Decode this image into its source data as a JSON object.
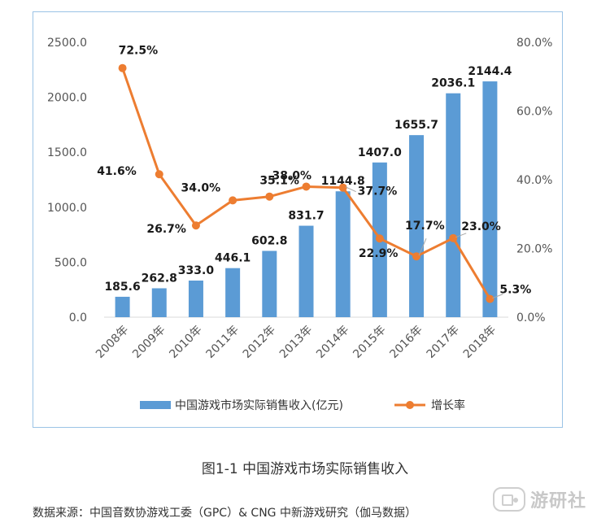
{
  "chart_data": {
    "type": "bar",
    "categories": [
      "2008年",
      "2009年",
      "2010年",
      "2011年",
      "2012年",
      "2013年",
      "2014年",
      "2015年",
      "2016年",
      "2017年",
      "2018年"
    ],
    "series": [
      {
        "name": "中国游戏市场实际销售收入(亿元)",
        "type": "bar",
        "axis": "left",
        "color": "#5b9bd5",
        "values": [
          185.6,
          262.8,
          333.0,
          446.1,
          602.8,
          831.7,
          1144.8,
          1407.0,
          1655.7,
          2036.1,
          2144.4
        ],
        "labels": [
          "185.6",
          "262.8",
          "333.0",
          "446.1",
          "602.8",
          "831.7",
          "1144.8",
          "1407.0",
          "1655.7",
          "2036.1",
          "2144.4"
        ]
      },
      {
        "name": "增长率",
        "type": "line",
        "axis": "right",
        "color": "#ed7d31",
        "values": [
          72.5,
          41.6,
          26.7,
          34.0,
          35.1,
          38.0,
          37.7,
          22.9,
          17.7,
          23.0,
          5.3
        ],
        "labels": [
          "72.5%",
          "41.6%",
          "26.7%",
          "34.0%",
          "35.1%",
          "38.0%",
          "37.7%",
          "22.9%",
          "17.7%",
          "23.0%",
          "5.3%"
        ]
      }
    ],
    "y_left": {
      "ylim": [
        0,
        2500
      ],
      "ticks": [
        "0.0",
        "500.0",
        "1000.0",
        "1500.0",
        "2000.0",
        "2500.0"
      ]
    },
    "y_right": {
      "ylim": [
        0,
        80
      ],
      "ticks": [
        "0.0%",
        "20.0%",
        "40.0%",
        "60.0%",
        "80.0%"
      ]
    },
    "legend": {
      "placement": "bottom"
    },
    "grid": false
  },
  "caption": "图1-1 中国游戏市场实际销售收入",
  "source": "数据来源：中国音数协游戏工委（GPC）& CNG 中新游戏研究（伽马数据）",
  "watermark": "游研社"
}
